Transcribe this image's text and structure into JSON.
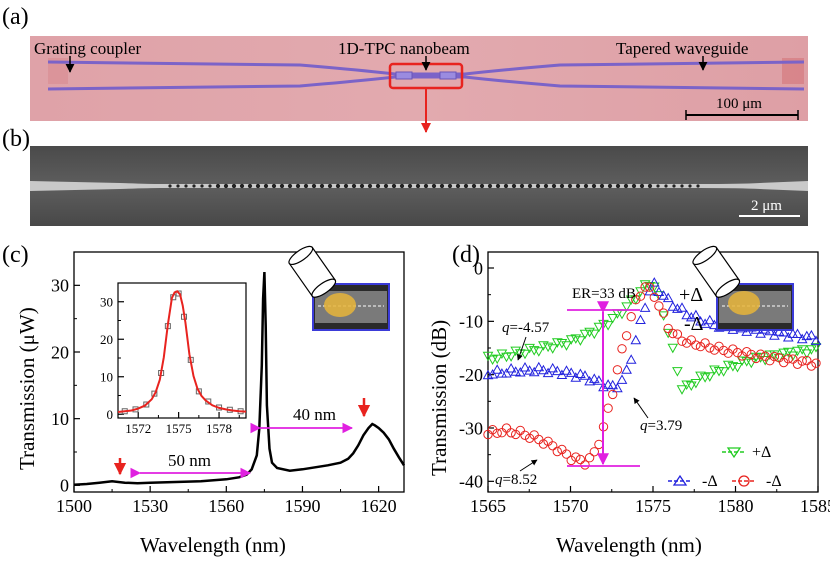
{
  "panel_a": {
    "label": "(a)",
    "annotations": [
      "Grating coupler",
      "1D-TPC nanobeam",
      "Tapered waveguide"
    ],
    "scale_bar": "100 μm",
    "colors": {
      "background": "#e0a6ab",
      "waveguide": "#7b63c8",
      "highlight": "#e8231f"
    }
  },
  "panel_b": {
    "label": "(b)",
    "scale_bar": "2 μm",
    "colors": {
      "background": "#555555",
      "beam": "#c9c9c9"
    }
  },
  "chart_data": [
    {
      "panel": "(c)",
      "type": "line",
      "xlabel": "Wavelength (nm)",
      "ylabel": "Transmission (μW)",
      "xlim": [
        1500,
        1630
      ],
      "ylim": [
        -1,
        35
      ],
      "xticks": [
        "1500",
        "1530",
        "1560",
        "1590",
        "1620"
      ],
      "yticks": [
        "0",
        "10",
        "20",
        "30"
      ],
      "series": [
        {
          "name": "transmission",
          "color": "#000000",
          "x": [
            1500,
            1505,
            1510,
            1515,
            1520,
            1525,
            1530,
            1540,
            1550,
            1560,
            1565,
            1568,
            1570,
            1572,
            1573,
            1574,
            1574.5,
            1575,
            1575.5,
            1576,
            1577,
            1578,
            1580,
            1585,
            1590,
            1595,
            1600,
            1605,
            1608,
            1610,
            1612,
            1614,
            1616,
            1617.5,
            1618.5,
            1620,
            1622,
            1624,
            1626,
            1628,
            1630
          ],
          "y": [
            0.1,
            0.2,
            0.4,
            0.6,
            0.4,
            0.3,
            0.4,
            0.5,
            0.6,
            0.9,
            1.2,
            1.6,
            2.4,
            4.5,
            8.5,
            18,
            28,
            32,
            24,
            12,
            5.5,
            3.4,
            2.6,
            2.2,
            2.4,
            2.7,
            3.0,
            3.4,
            4.0,
            4.8,
            6.0,
            7.5,
            8.6,
            9.2,
            9.0,
            8.6,
            7.9,
            6.9,
            5.5,
            4.2,
            3.0
          ]
        }
      ],
      "annotations": [
        "40 nm",
        "50 nm"
      ],
      "arrow_markers_x": [
        1515,
        1618
      ],
      "inset": {
        "type": "line",
        "xlim": [
          1570.5,
          1580
        ],
        "ylim": [
          -1,
          35
        ],
        "xticks": [
          "1572",
          "1575",
          "1578"
        ],
        "yticks": [
          "0",
          "10",
          "20",
          "30"
        ],
        "fit": {
          "name": "Lorentzian fit",
          "color": "#e8231f",
          "x": [
            1570.5,
            1571,
            1571.5,
            1572,
            1572.5,
            1573,
            1573.3,
            1573.6,
            1573.9,
            1574.2,
            1574.5,
            1574.7,
            1574.9,
            1575,
            1575.1,
            1575.3,
            1575.5,
            1575.8,
            1576.1,
            1576.4,
            1576.7,
            1577,
            1577.5,
            1578,
            1578.5,
            1579,
            1579.5,
            1580
          ],
          "y": [
            0.6,
            0.8,
            1.0,
            1.5,
            2.3,
            4.0,
            5.9,
            9.2,
            15.2,
            24.0,
            31.0,
            32.5,
            32.8,
            32.4,
            32.0,
            29.0,
            24.5,
            16.0,
            10.2,
            6.8,
            4.9,
            3.7,
            2.4,
            1.7,
            1.3,
            1.0,
            0.8,
            0.7
          ]
        },
        "measured": {
          "name": "measured",
          "color": "#666666",
          "x": [
            1571,
            1571.8,
            1572.6,
            1573.2,
            1573.7,
            1574.2,
            1574.6,
            1575,
            1575.4,
            1575.9,
            1576.5,
            1577.2,
            1578,
            1578.8,
            1579.6
          ],
          "y": [
            0.8,
            1.3,
            2.6,
            5.5,
            11.0,
            23.5,
            31.2,
            32.2,
            26.0,
            14.5,
            6.1,
            3.4,
            1.8,
            1.2,
            0.8
          ]
        }
      }
    },
    {
      "panel": "(d)",
      "type": "scatter",
      "xlabel": "Wavelength (nm)",
      "ylabel": "Transmission (dB)",
      "xlim": [
        1565,
        1585
      ],
      "ylim": [
        -42,
        3
      ],
      "xticks": [
        "1565",
        "1570",
        "1575",
        "1580",
        "1585"
      ],
      "yticks": [
        "0",
        "-10",
        "-20",
        "-30",
        "-40"
      ],
      "series": [
        {
          "name": "+Δ",
          "color": "#22cc22",
          "marker": "triangle-down",
          "x": [
            1565,
            1566,
            1567,
            1568,
            1569,
            1570,
            1571,
            1572,
            1572.8,
            1573.5,
            1574.2,
            1574.7,
            1575,
            1575.3,
            1575.6,
            1576,
            1576.4,
            1576.8,
            1577.2,
            1578,
            1579,
            1580,
            1581,
            1582,
            1583,
            1584,
            1585
          ],
          "y": [
            -17,
            -16.5,
            -15.8,
            -15.2,
            -14.5,
            -13.8,
            -12.5,
            -10.8,
            -9,
            -7,
            -4.5,
            -3,
            -2.8,
            -5,
            -8,
            -13,
            -18,
            -23,
            -22,
            -20.5,
            -19.2,
            -18.2,
            -17.2,
            -16.6,
            -16.1,
            -15.6,
            -15.2
          ]
        },
        {
          "name": "-Δ",
          "color": "#2222dd",
          "marker": "triangle-up",
          "x": [
            1565,
            1566,
            1567,
            1568,
            1569,
            1570,
            1571,
            1572,
            1572.7,
            1573.3,
            1573.8,
            1574.3,
            1574.7,
            1575,
            1575.5,
            1576,
            1577,
            1578,
            1579,
            1580,
            1581,
            1582,
            1583,
            1584,
            1585
          ],
          "y": [
            -19.8,
            -19.5,
            -19.2,
            -19.1,
            -19.3,
            -19.8,
            -20.5,
            -21.8,
            -22.5,
            -20.5,
            -15.5,
            -9.5,
            -5,
            -3,
            -4.5,
            -6.5,
            -8.5,
            -10,
            -10.8,
            -11.2,
            -11.6,
            -12.0,
            -12.4,
            -12.8,
            -13.2
          ]
        },
        {
          "name": "-Δ",
          "color": "#e8231f",
          "marker": "circle",
          "x": [
            1565,
            1566,
            1567,
            1568,
            1569,
            1570,
            1571,
            1571.5,
            1572,
            1572.5,
            1573,
            1573.5,
            1574,
            1574.5,
            1575,
            1575.5,
            1576,
            1576.5,
            1577,
            1578,
            1579,
            1580,
            1581,
            1582,
            1583,
            1584,
            1585
          ],
          "y": [
            -31,
            -30.5,
            -31,
            -32,
            -33.5,
            -35.5,
            -36.5,
            -34.5,
            -30,
            -24,
            -17,
            -11,
            -6,
            -3.5,
            -4.5,
            -8,
            -11.5,
            -13,
            -13.8,
            -14.5,
            -15.2,
            -15.8,
            -16.3,
            -16.8,
            -17.2,
            -17.6,
            -18
          ]
        }
      ],
      "annotations": {
        "er": "ER=33 dB",
        "q_green_prefix": "q",
        "q_green": "=-4.57",
        "q_blue_prefix": "q",
        "q_blue": "=3.79",
        "q_red_prefix": "q",
        "q_red": "=8.52"
      },
      "inset_labels": [
        "+Δ",
        "-Δ"
      ],
      "legend": [
        "+Δ",
        "-Δ",
        "-Δ"
      ],
      "legend_position": "bottom-right",
      "er_color": "#e020e0"
    }
  ],
  "panel_labels": {
    "c": "(c)",
    "d": "(d)"
  }
}
